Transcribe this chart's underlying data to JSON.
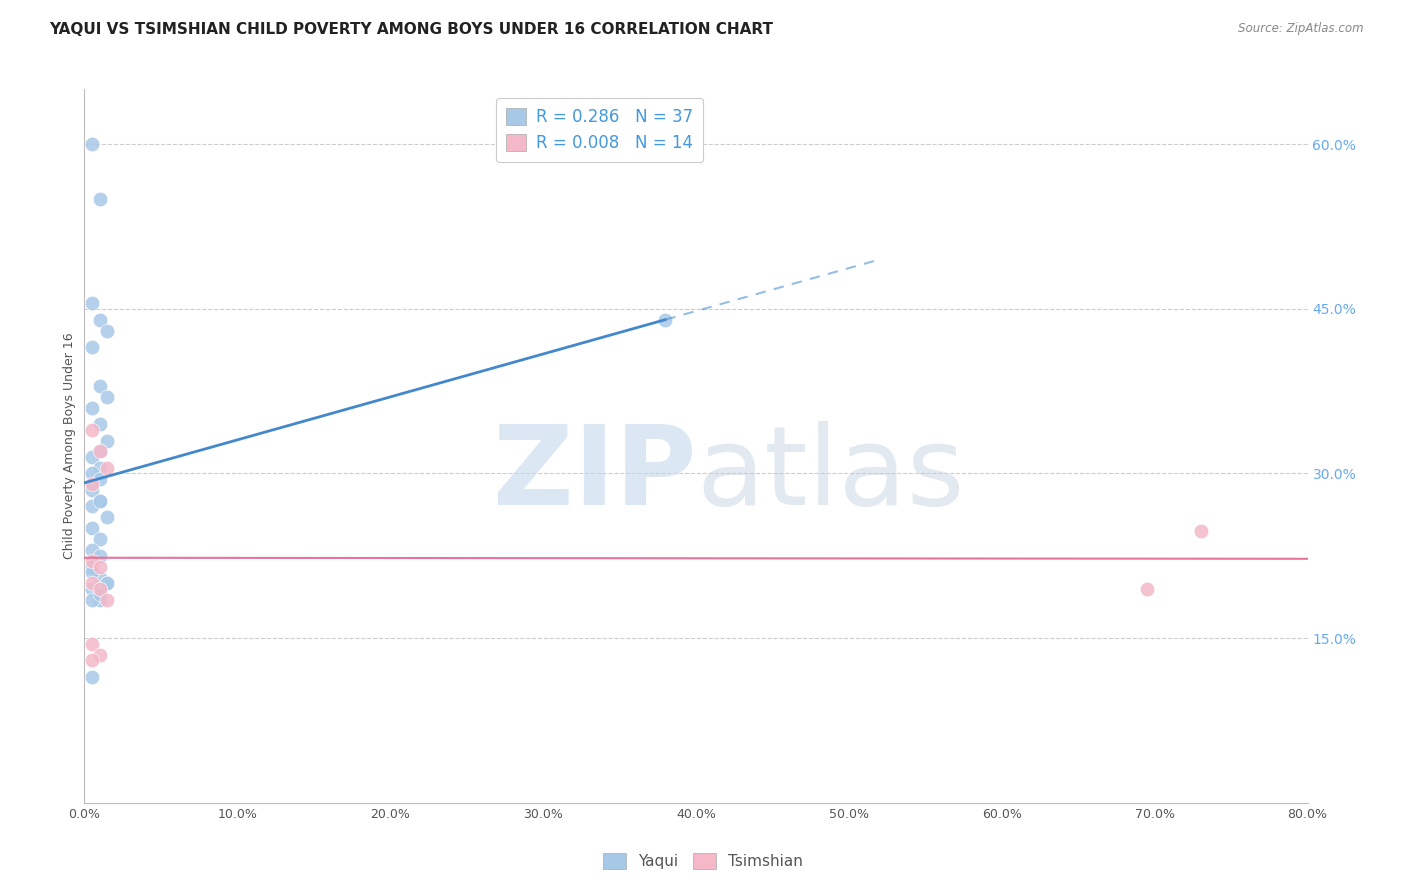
{
  "title": "YAQUI VS TSIMSHIAN CHILD POVERTY AMONG BOYS UNDER 16 CORRELATION CHART",
  "source": "Source: ZipAtlas.com",
  "ylabel": "Child Poverty Among Boys Under 16",
  "xlim": [
    0.0,
    0.8
  ],
  "ylim": [
    0.0,
    0.65
  ],
  "xticks": [
    0.0,
    0.1,
    0.2,
    0.3,
    0.4,
    0.5,
    0.6,
    0.7,
    0.8
  ],
  "xticklabels": [
    "0.0%",
    "10.0%",
    "20.0%",
    "30.0%",
    "40.0%",
    "50.0%",
    "60.0%",
    "70.0%",
    "80.0%"
  ],
  "yticks_right": [
    0.15,
    0.3,
    0.45,
    0.6
  ],
  "ytick_right_labels": [
    "15.0%",
    "30.0%",
    "45.0%",
    "60.0%"
  ],
  "legend_yaqui_R": "0.286",
  "legend_yaqui_N": "37",
  "legend_tsimshian_R": "0.008",
  "legend_tsimshian_N": "14",
  "yaqui_color": "#a8c8e8",
  "tsimshian_color": "#f4b8c8",
  "yaqui_line_color": "#4488cc",
  "tsimshian_line_color": "#e8729a",
  "yaqui_x": [
    0.005,
    0.01,
    0.005,
    0.01,
    0.015,
    0.005,
    0.01,
    0.015,
    0.005,
    0.01,
    0.015,
    0.01,
    0.005,
    0.01,
    0.005,
    0.01,
    0.005,
    0.01,
    0.015,
    0.005,
    0.01,
    0.005,
    0.01,
    0.005,
    0.01,
    0.015,
    0.005,
    0.01,
    0.005,
    0.01,
    0.005,
    0.01,
    0.005,
    0.01,
    0.015,
    0.005,
    0.38
  ],
  "yaqui_y": [
    0.6,
    0.55,
    0.455,
    0.44,
    0.43,
    0.415,
    0.38,
    0.37,
    0.36,
    0.345,
    0.33,
    0.32,
    0.315,
    0.305,
    0.3,
    0.295,
    0.285,
    0.275,
    0.26,
    0.25,
    0.24,
    0.23,
    0.225,
    0.215,
    0.205,
    0.2,
    0.195,
    0.195,
    0.27,
    0.275,
    0.21,
    0.185,
    0.185,
    0.19,
    0.2,
    0.115,
    0.44
  ],
  "tsimshian_x": [
    0.005,
    0.01,
    0.015,
    0.005,
    0.005,
    0.01,
    0.005,
    0.01,
    0.015,
    0.005,
    0.01,
    0.005,
    0.73,
    0.695
  ],
  "tsimshian_y": [
    0.34,
    0.32,
    0.305,
    0.29,
    0.22,
    0.215,
    0.2,
    0.195,
    0.185,
    0.145,
    0.135,
    0.13,
    0.248,
    0.195
  ],
  "grid_color": "#cccccc",
  "background_color": "#ffffff",
  "title_fontsize": 11,
  "axis_label_fontsize": 9,
  "tick_fontsize": 9,
  "legend_fontsize": 11,
  "yaqui_line_start_x": 0.0,
  "yaqui_line_end_x": 0.38,
  "yaqui_line_dashed_end_x": 0.52,
  "tsimshian_line_start_x": 0.0,
  "tsimshian_line_end_x": 0.8
}
